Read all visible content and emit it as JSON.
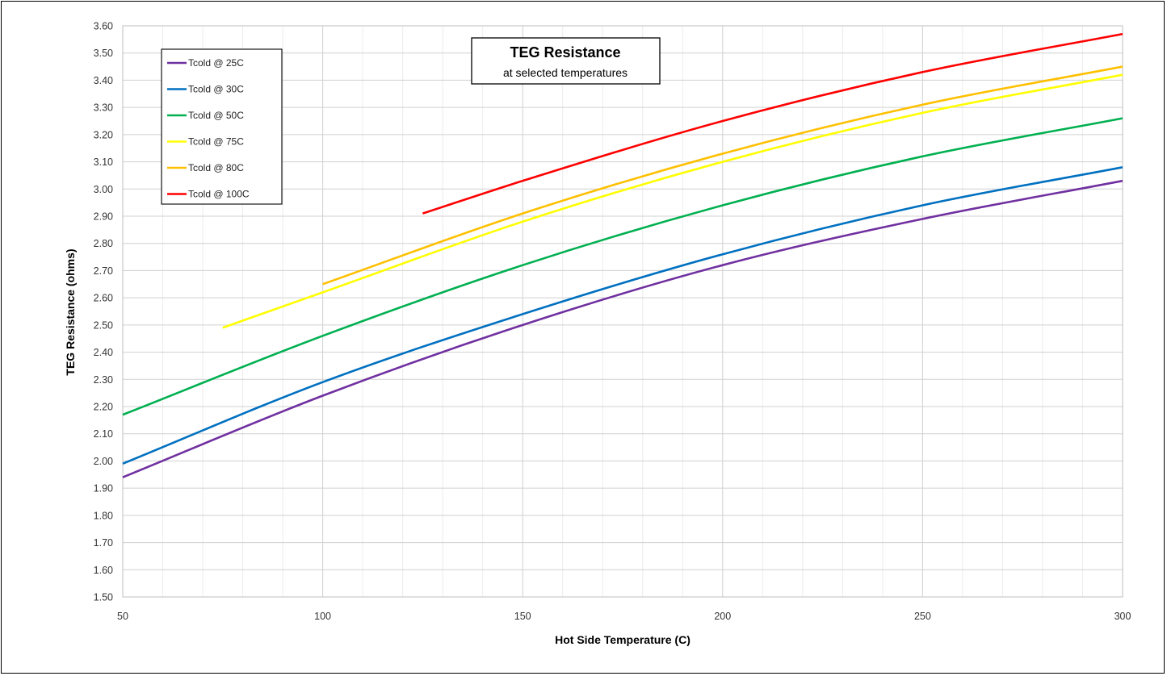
{
  "chart_data": {
    "type": "line",
    "title": "TEG Resistance",
    "subtitle": "at selected temperatures",
    "xlabel": "Hot Side Temperature (C)",
    "ylabel": "TEG Resistance (ohms)",
    "xlim": [
      50,
      300
    ],
    "ylim": [
      1.5,
      3.6
    ],
    "x_ticks": [
      50,
      100,
      150,
      200,
      250,
      300
    ],
    "y_ticks": [
      "1.50",
      "1.60",
      "1.70",
      "1.80",
      "1.90",
      "2.00",
      "2.10",
      "2.20",
      "2.30",
      "2.40",
      "2.50",
      "2.60",
      "2.70",
      "2.80",
      "2.90",
      "3.00",
      "3.10",
      "3.20",
      "3.30",
      "3.40",
      "3.50",
      "3.60"
    ],
    "grid": true,
    "legend_position": "top-left",
    "series": [
      {
        "name": "Tcold @ 25C",
        "color": "#7030A0",
        "x": [
          50,
          100,
          150,
          200,
          250,
          300
        ],
        "y": [
          1.94,
          2.24,
          2.5,
          2.72,
          2.89,
          3.03
        ]
      },
      {
        "name": "Tcold @ 30C",
        "color": "#0070C0",
        "x": [
          50,
          100,
          150,
          200,
          250,
          300
        ],
        "y": [
          1.99,
          2.29,
          2.54,
          2.76,
          2.94,
          3.08
        ]
      },
      {
        "name": "Tcold @ 50C",
        "color": "#00B050",
        "x": [
          50,
          100,
          150,
          200,
          250,
          300
        ],
        "y": [
          2.17,
          2.46,
          2.72,
          2.94,
          3.12,
          3.26
        ]
      },
      {
        "name": "Tcold @ 75C",
        "color": "#FFFF00",
        "x": [
          75,
          100,
          150,
          200,
          250,
          300
        ],
        "y": [
          2.49,
          2.62,
          2.88,
          3.1,
          3.28,
          3.42
        ]
      },
      {
        "name": "Tcold @ 80C",
        "color": "#FFC000",
        "x": [
          100,
          150,
          200,
          250,
          300
        ],
        "y": [
          2.65,
          2.91,
          3.13,
          3.31,
          3.45
        ]
      },
      {
        "name": "Tcold @ 100C",
        "color": "#FF0000",
        "x": [
          125,
          150,
          200,
          250,
          300
        ],
        "y": [
          2.91,
          3.03,
          3.25,
          3.43,
          3.57
        ]
      }
    ]
  }
}
